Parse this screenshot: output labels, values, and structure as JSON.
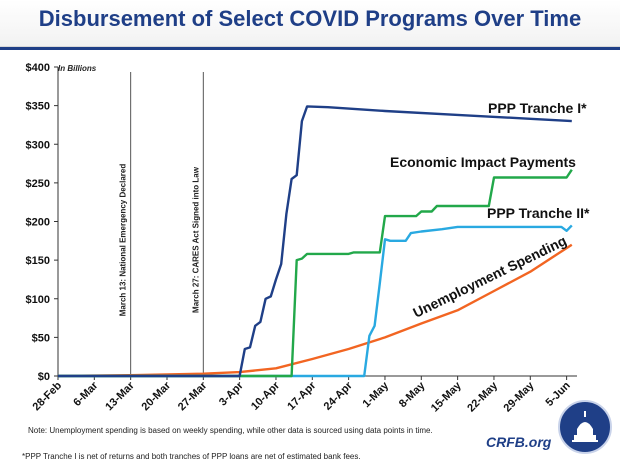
{
  "title": "Disbursement of Select COVID Programs Over Time",
  "note": "Note: Unemployment  spending is based on weekly spending, while other data is sourced using data points in time.",
  "footnote": "*PPP Tranche I is net of returns and both tranches of PPP loans are net of estimated bank fees.",
  "brand": "CRFB.org",
  "logo": "capitol-dome-seal",
  "chart_data": {
    "type": "line",
    "unit_label": "In Billions",
    "ylim": [
      0,
      400
    ],
    "yticks": [
      0,
      50,
      100,
      150,
      200,
      250,
      300,
      350,
      400
    ],
    "ytick_labels": [
      "$0",
      "$50",
      "$100",
      "$150",
      "$200",
      "$250",
      "$300",
      "$350",
      "$400"
    ],
    "xlim": [
      "2020-02-28",
      "2020-06-07"
    ],
    "xtick_labels": [
      "28-Feb",
      "6-Mar",
      "13-Mar",
      "20-Mar",
      "27-Mar",
      "3-Apr",
      "10-Apr",
      "17-Apr",
      "24-Apr",
      "1-May",
      "8-May",
      "15-May",
      "22-May",
      "29-May",
      "5-Jun"
    ],
    "xtick_dates": [
      "2020-02-28",
      "2020-03-06",
      "2020-03-13",
      "2020-03-20",
      "2020-03-27",
      "2020-04-03",
      "2020-04-10",
      "2020-04-17",
      "2020-04-24",
      "2020-05-01",
      "2020-05-08",
      "2020-05-15",
      "2020-05-22",
      "2020-05-29",
      "2020-06-05"
    ],
    "grid": false,
    "annotations": [
      {
        "date": "2020-03-13",
        "text": "March 13: National Emergency Declared"
      },
      {
        "date": "2020-03-27",
        "text": "March 27: CARES Act Signed into Law"
      }
    ],
    "series": [
      {
        "name": "PPP Tranche I*",
        "color": "#1f3f87",
        "points": [
          [
            "2020-04-03",
            0
          ],
          [
            "2020-04-04",
            35
          ],
          [
            "2020-04-05",
            37
          ],
          [
            "2020-04-06",
            65
          ],
          [
            "2020-04-07",
            70
          ],
          [
            "2020-04-08",
            100
          ],
          [
            "2020-04-09",
            103
          ],
          [
            "2020-04-10",
            125
          ],
          [
            "2020-04-11",
            145
          ],
          [
            "2020-04-12",
            210
          ],
          [
            "2020-04-13",
            255
          ],
          [
            "2020-04-14",
            260
          ],
          [
            "2020-04-15",
            330
          ],
          [
            "2020-04-16",
            349
          ],
          [
            "2020-04-20",
            348
          ],
          [
            "2020-05-01",
            343
          ],
          [
            "2020-05-15",
            338
          ],
          [
            "2020-05-29",
            333
          ],
          [
            "2020-06-06",
            330
          ]
        ]
      },
      {
        "name": "Economic Impact Payments",
        "color": "#22a84a",
        "points": [
          [
            "2020-04-13",
            0
          ],
          [
            "2020-04-14",
            150
          ],
          [
            "2020-04-15",
            152
          ],
          [
            "2020-04-16",
            158
          ],
          [
            "2020-04-24",
            158
          ],
          [
            "2020-04-25",
            160
          ],
          [
            "2020-04-30",
            160
          ],
          [
            "2020-05-01",
            207
          ],
          [
            "2020-05-07",
            207
          ],
          [
            "2020-05-08",
            213
          ],
          [
            "2020-05-10",
            213
          ],
          [
            "2020-05-11",
            220
          ],
          [
            "2020-05-21",
            220
          ],
          [
            "2020-05-22",
            257
          ],
          [
            "2020-06-05",
            257
          ],
          [
            "2020-06-06",
            267
          ]
        ]
      },
      {
        "name": "PPP Tranche II*",
        "color": "#29a9e1",
        "points": [
          [
            "2020-04-27",
            0
          ],
          [
            "2020-04-28",
            52
          ],
          [
            "2020-04-29",
            65
          ],
          [
            "2020-04-30",
            120
          ],
          [
            "2020-05-01",
            177
          ],
          [
            "2020-05-02",
            175
          ],
          [
            "2020-05-05",
            175
          ],
          [
            "2020-05-06",
            185
          ],
          [
            "2020-05-08",
            187
          ],
          [
            "2020-05-12",
            190
          ],
          [
            "2020-05-15",
            193
          ],
          [
            "2020-05-29",
            193
          ],
          [
            "2020-06-04",
            193
          ],
          [
            "2020-06-05",
            188
          ],
          [
            "2020-06-06",
            195
          ]
        ]
      },
      {
        "name": "Unemployment Spending",
        "color": "#f26522",
        "points": [
          [
            "2020-02-28",
            0
          ],
          [
            "2020-03-13",
            1
          ],
          [
            "2020-03-27",
            3
          ],
          [
            "2020-04-03",
            5
          ],
          [
            "2020-04-10",
            10
          ],
          [
            "2020-04-17",
            22
          ],
          [
            "2020-04-24",
            35
          ],
          [
            "2020-05-01",
            50
          ],
          [
            "2020-05-08",
            68
          ],
          [
            "2020-05-15",
            85
          ],
          [
            "2020-05-22",
            110
          ],
          [
            "2020-05-29",
            135
          ],
          [
            "2020-06-06",
            170
          ]
        ]
      }
    ],
    "series_labels": [
      "PPP Tranche I*",
      "Economic Impact Payments",
      "PPP Tranche II*",
      "Unemployment Spending"
    ]
  }
}
